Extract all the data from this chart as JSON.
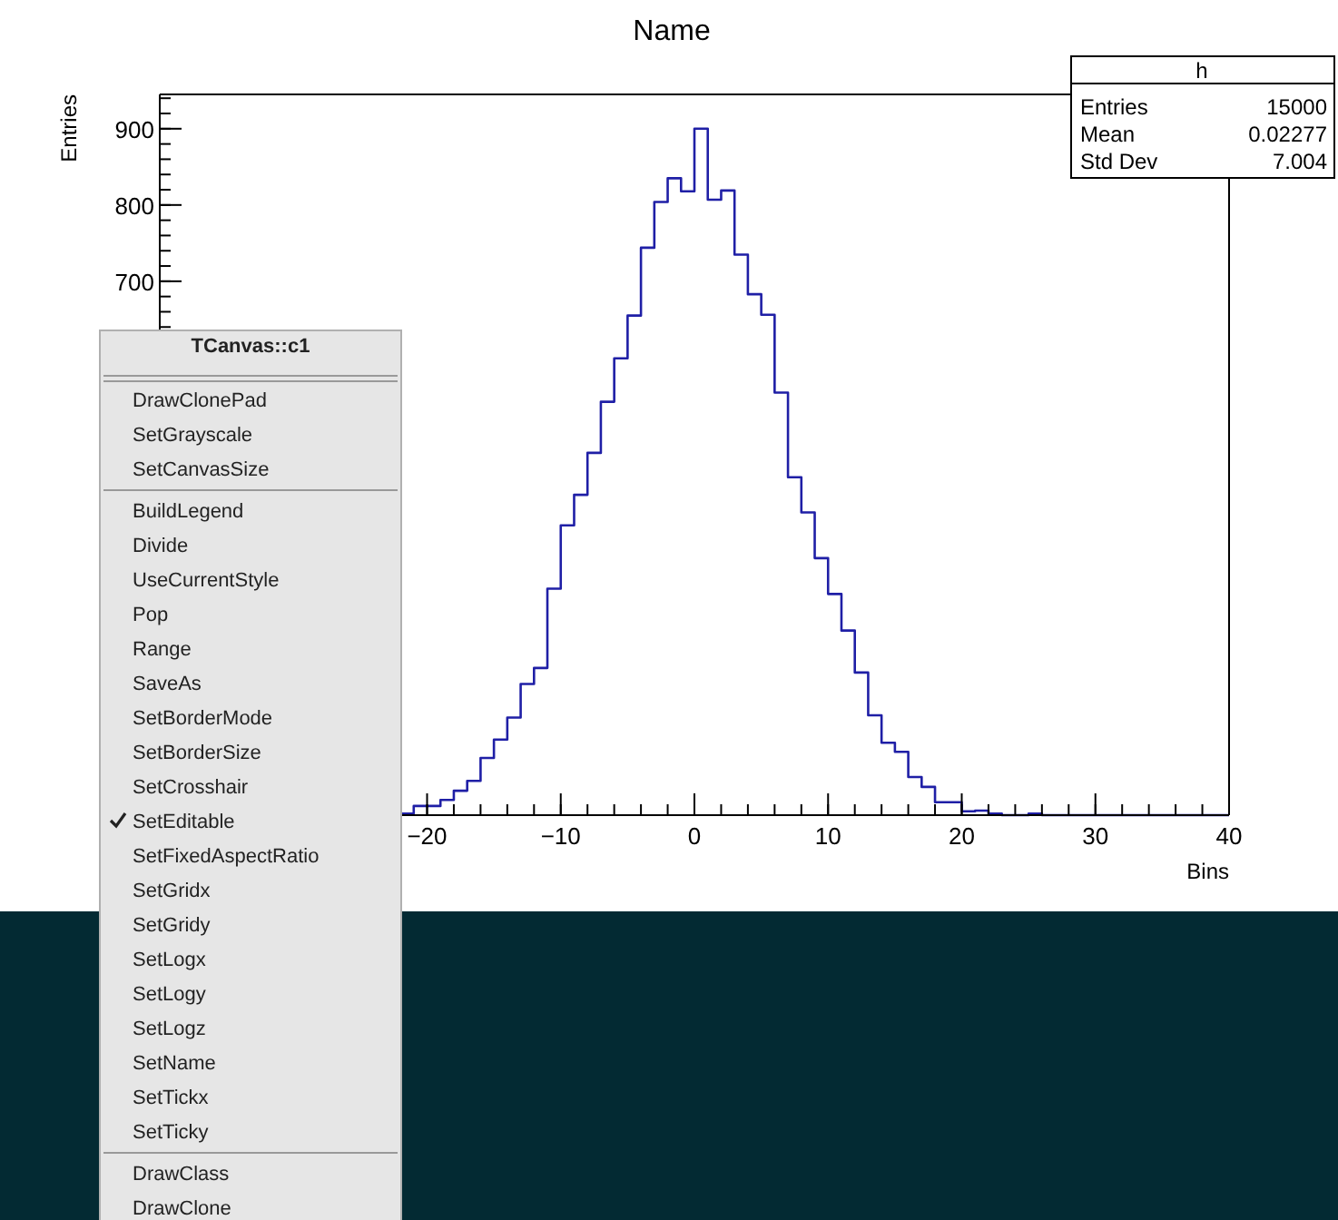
{
  "chart_data": {
    "type": "histogram",
    "title": "Name",
    "xlabel": "Bins",
    "ylabel": "Entries",
    "bins": [
      -22,
      -21,
      -20,
      -19,
      -18,
      -17,
      -16,
      -15,
      -14,
      -13,
      -12,
      -11,
      -10,
      -9,
      -8,
      -7,
      -6,
      -5,
      -4,
      -3,
      -2,
      -1,
      0,
      1,
      2,
      3,
      4,
      5,
      6,
      7,
      8,
      9,
      10,
      11,
      12,
      13,
      14,
      15,
      16,
      17,
      18,
      19,
      20,
      21,
      22,
      23,
      24,
      25,
      26,
      27,
      28,
      29,
      30,
      31,
      32,
      33,
      34,
      35,
      36,
      37,
      38,
      39,
      40
    ],
    "values": [
      2,
      12,
      12,
      20,
      32,
      45,
      75,
      99,
      128,
      172,
      193,
      297,
      380,
      420,
      475,
      542,
      599,
      655,
      744,
      804,
      835,
      818,
      900,
      807,
      819,
      735,
      683,
      656,
      554,
      443,
      397,
      337,
      290,
      242,
      187,
      131,
      95,
      83,
      50,
      37,
      17,
      17,
      5,
      6,
      2,
      0,
      0,
      2,
      0,
      0,
      0,
      0,
      0,
      0,
      0,
      0,
      0,
      0,
      0,
      0,
      0,
      0
    ],
    "color": "#1f1fa6",
    "xlim": [
      -40,
      40
    ],
    "xticks": [
      -20,
      -10,
      0,
      10,
      20,
      30,
      40
    ],
    "ylim": [
      0,
      945
    ],
    "yticks": [
      700,
      800,
      900
    ],
    "grid": false,
    "annotations": [
      "h",
      "Entries",
      "15000",
      "Mean",
      "0.02277",
      "Std Dev",
      "7.004",
      "TCanvas::c1",
      "DrawClonePad",
      "SetGrayscale",
      "SetCanvasSize",
      "BuildLegend",
      "Divide",
      "UseCurrentStyle",
      "Pop",
      "Range",
      "SaveAs",
      "SetBorderMode",
      "SetBorderSize",
      "SetCrosshair",
      "SetEditable",
      "SetFixedAspectRatio",
      "SetGridx",
      "SetGridy",
      "SetLogx",
      "SetLogy",
      "SetLogz",
      "SetName",
      "SetTickx",
      "SetTicky",
      "DrawClass",
      "DrawClone"
    ]
  }
}
